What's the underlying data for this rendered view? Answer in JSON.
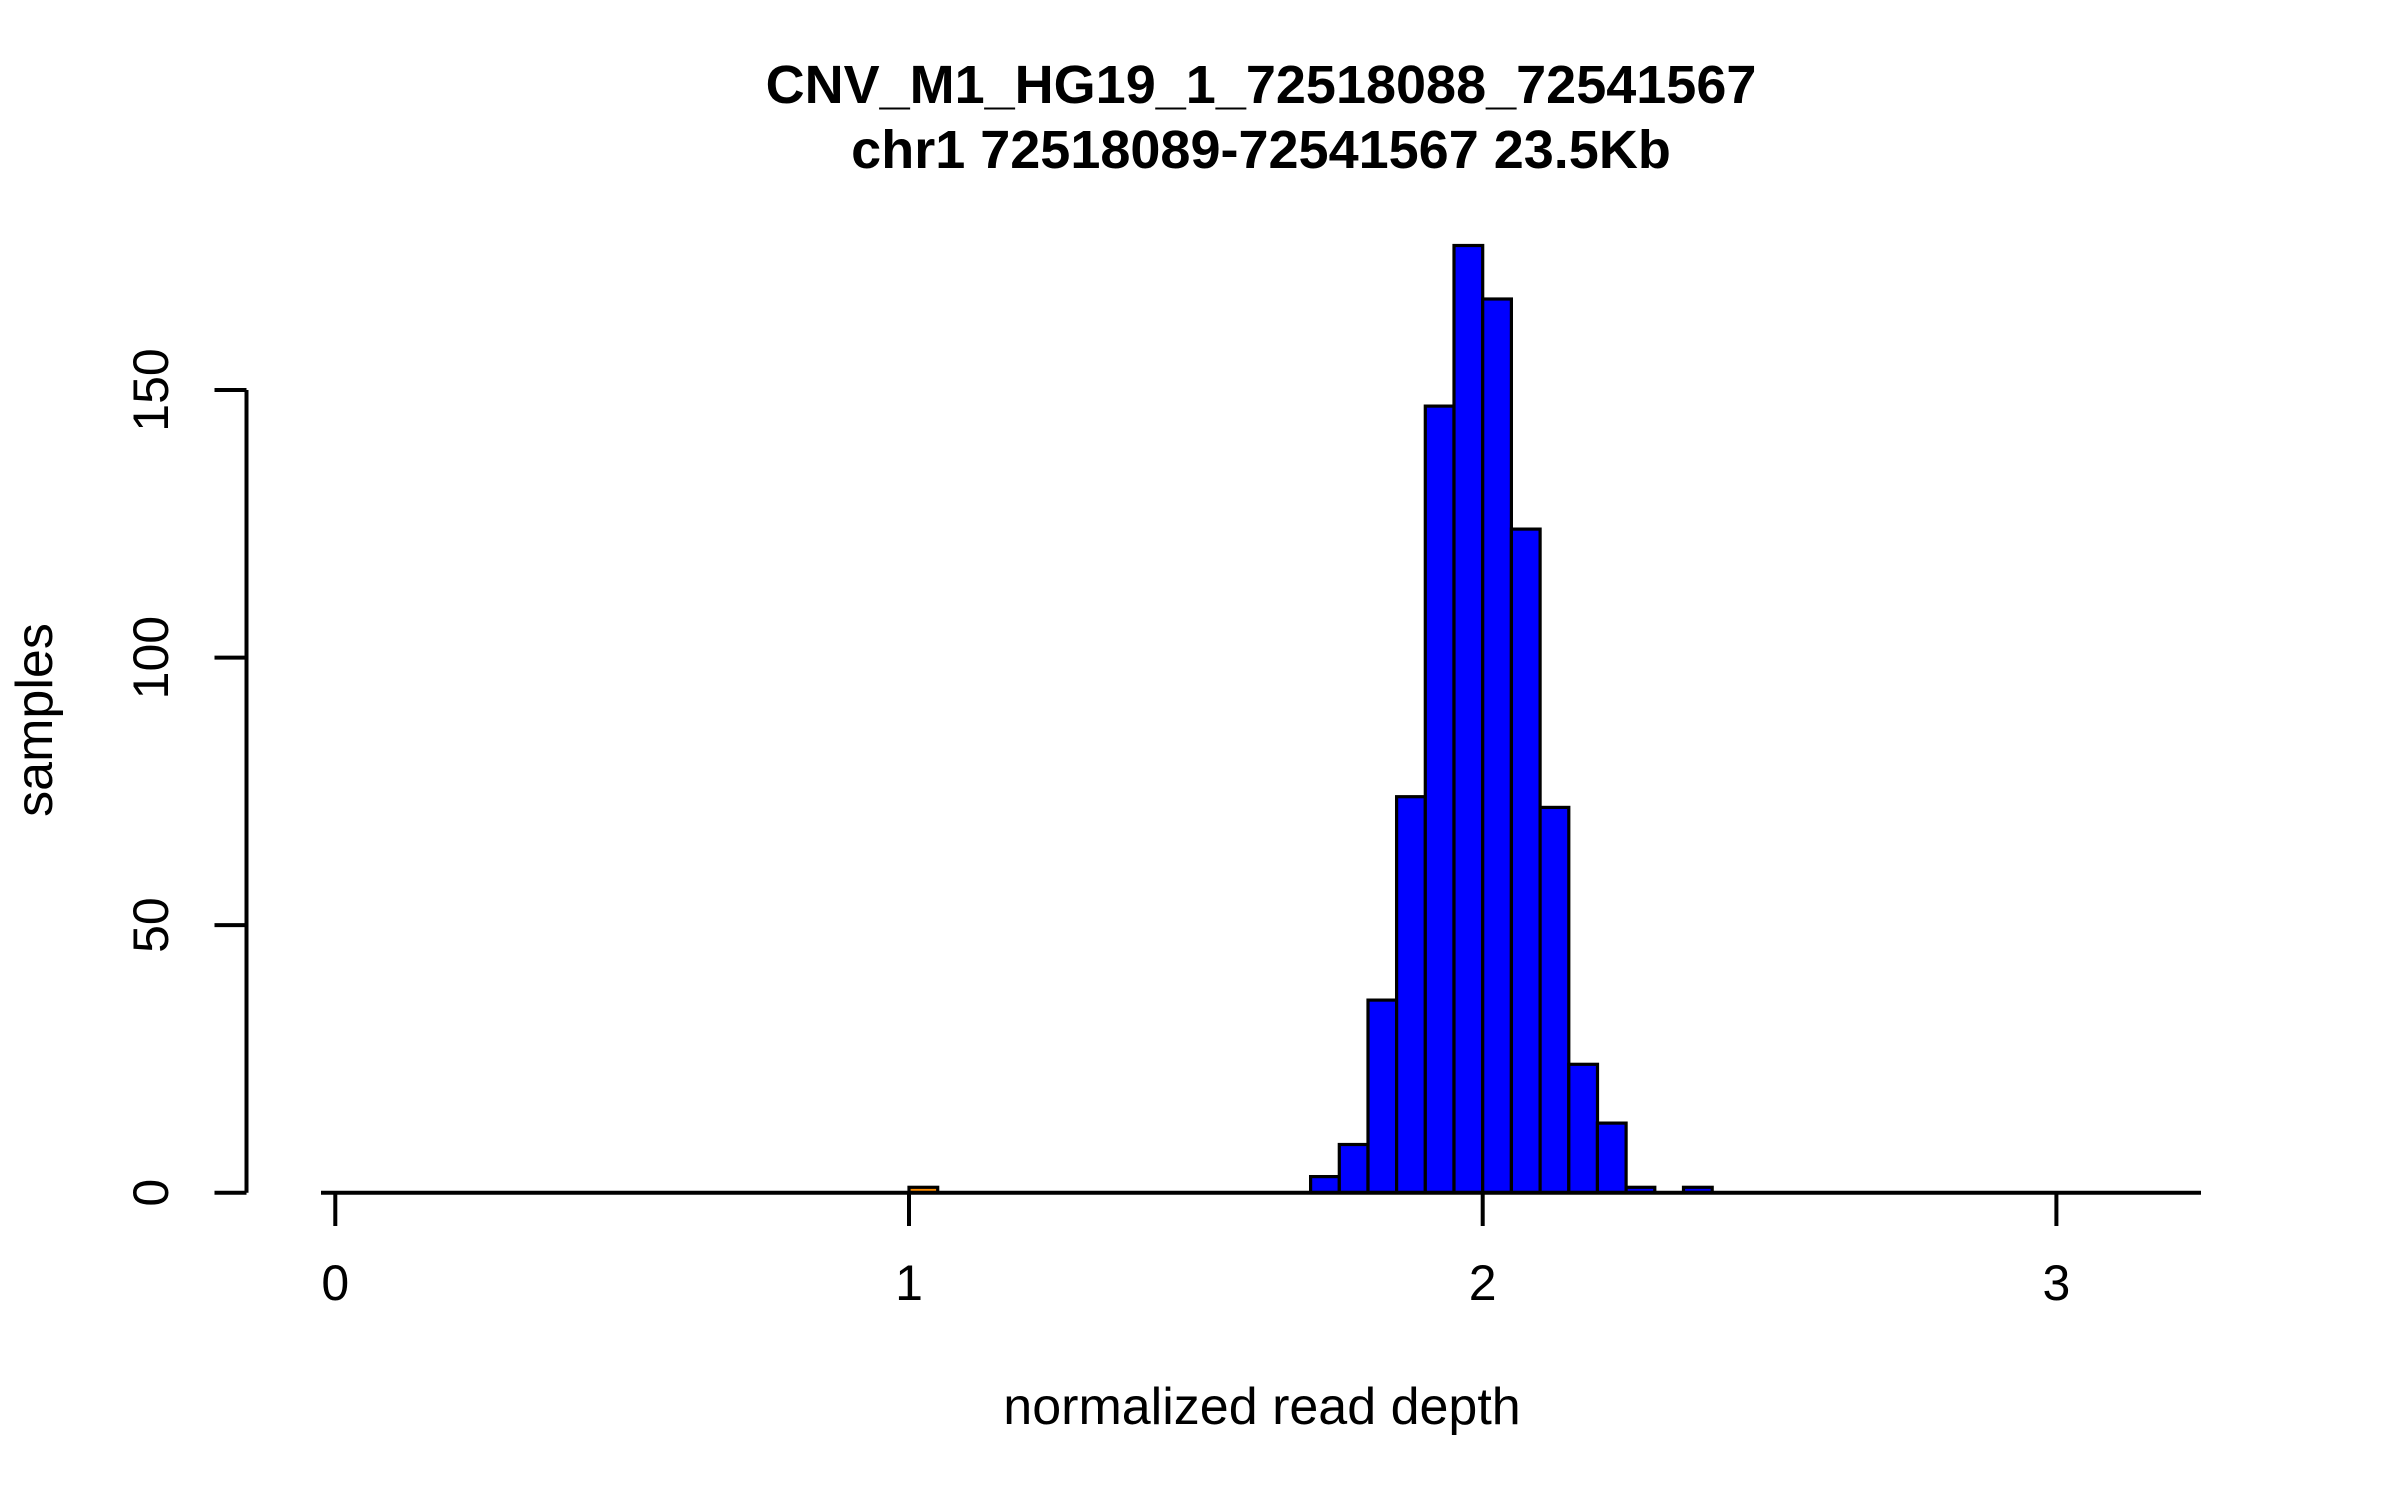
{
  "figure": {
    "title_line1": "CNV_M1_HG19_1_72518088_72541567",
    "title_line2": "chr1 72518089-72541567 23.5Kb",
    "x_axis": {
      "label": "normalized read depth",
      "tick_labels": [
        "0",
        "1",
        "2",
        "3"
      ]
    },
    "y_axis": {
      "label": "samples",
      "tick_labels": [
        "0",
        "50",
        "100",
        "150"
      ]
    },
    "colors": {
      "background": "#FFFFFF",
      "bar_fill": "#0000FF",
      "outlier_bar_fill": "#FF8C00",
      "bar_border": "#000000",
      "axis": "#000000",
      "text": "#000000"
    }
  },
  "chart_data": {
    "type": "bar",
    "subtype": "histogram",
    "title": "CNV_M1_HG19_1_72518088_72541567",
    "subtitle": "chr1 72518089-72541567 23.5Kb",
    "xlabel": "normalized read depth",
    "ylabel": "samples",
    "xlim": [
      -0.03,
      3.25
    ],
    "ylim": [
      0,
      177
    ],
    "grid": false,
    "legend": false,
    "x_ticks": [
      0,
      1,
      2,
      3
    ],
    "y_ticks": [
      0,
      50,
      100,
      150
    ],
    "bin_width": 0.05,
    "bars": [
      {
        "x0": 1.0,
        "count": 1,
        "color": "#FF8C00"
      },
      {
        "x0": 1.7,
        "count": 3,
        "color": "#0000FF"
      },
      {
        "x0": 1.75,
        "count": 9,
        "color": "#0000FF"
      },
      {
        "x0": 1.8,
        "count": 36,
        "color": "#0000FF"
      },
      {
        "x0": 1.85,
        "count": 74,
        "color": "#0000FF"
      },
      {
        "x0": 1.9,
        "count": 147,
        "color": "#0000FF"
      },
      {
        "x0": 1.95,
        "count": 177,
        "color": "#0000FF"
      },
      {
        "x0": 2.0,
        "count": 167,
        "color": "#0000FF"
      },
      {
        "x0": 2.05,
        "count": 124,
        "color": "#0000FF"
      },
      {
        "x0": 2.1,
        "count": 72,
        "color": "#0000FF"
      },
      {
        "x0": 2.15,
        "count": 24,
        "color": "#0000FF"
      },
      {
        "x0": 2.2,
        "count": 13,
        "color": "#0000FF"
      },
      {
        "x0": 2.25,
        "count": 1,
        "color": "#0000FF"
      },
      {
        "x0": 2.3,
        "count": 0,
        "color": "#0000FF"
      },
      {
        "x0": 2.35,
        "count": 1,
        "color": "#0000FF"
      }
    ]
  }
}
